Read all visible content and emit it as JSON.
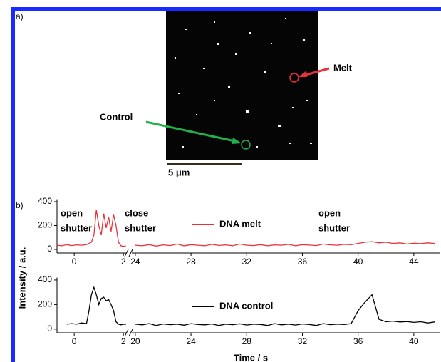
{
  "panel_a": {
    "label": "a)",
    "melt_label": "Melt",
    "control_label": "Control",
    "scale_bar": "5 μm"
  },
  "panel_b": {
    "label": "b)",
    "y_label": "Intensity / a.u.",
    "x_label": "Time / s"
  },
  "chart_data": [
    {
      "type": "line",
      "annotations": [
        [
          "open",
          "shutter"
        ],
        [
          "close",
          "shutter"
        ],
        [
          "open",
          "shutter"
        ]
      ],
      "ylim": [
        -30,
        420
      ],
      "yticks": [
        0,
        200,
        400
      ],
      "x_segments": [
        {
          "xlim": [
            -0.7,
            2.14
          ],
          "xticks": [
            0,
            2
          ]
        },
        {
          "xlim": [
            23.75,
            45.85
          ],
          "xticks": [
            24,
            28,
            32,
            36,
            40,
            44
          ]
        }
      ],
      "series": [
        {
          "name": "DNA melt",
          "color": "#e8323c",
          "x": [
            -0.7,
            -0.5,
            -0.3,
            -0.1,
            0.1,
            0.3,
            0.5,
            0.7,
            0.8,
            0.9,
            1.0,
            1.1,
            1.2,
            1.3,
            1.4,
            1.5,
            1.6,
            1.7,
            1.8,
            1.9,
            2.0,
            2.1,
            null,
            24,
            24.5,
            25,
            25.5,
            26,
            26.5,
            27,
            27.5,
            28,
            28.5,
            29,
            29.5,
            30,
            30.5,
            31,
            31.5,
            32,
            32.5,
            33,
            33.5,
            34,
            34.5,
            35,
            35.5,
            36,
            36.5,
            37,
            37.5,
            38,
            38.5,
            39,
            39.5,
            40,
            40.5,
            41,
            41.5,
            42,
            42.5,
            43,
            43.5,
            44,
            44.5,
            45,
            45.5
          ],
          "values": [
            35,
            30,
            40,
            32,
            38,
            35,
            40,
            60,
            120,
            330,
            200,
            120,
            300,
            180,
            270,
            150,
            290,
            200,
            60,
            30,
            25,
            30,
            null,
            35,
            30,
            40,
            28,
            38,
            32,
            45,
            30,
            40,
            35,
            30,
            42,
            33,
            38,
            30,
            45,
            35,
            32,
            40,
            30,
            38,
            35,
            42,
            30,
            40,
            36,
            32,
            45,
            38,
            35,
            42,
            40,
            50,
            60,
            65,
            55,
            60,
            50,
            55,
            45,
            52,
            48,
            55,
            50
          ]
        }
      ]
    },
    {
      "type": "line",
      "ylim": [
        -30,
        420
      ],
      "yticks": [
        0,
        200,
        400
      ],
      "x_segments": [
        {
          "xlim": [
            -0.7,
            2.14
          ],
          "xticks": [
            0,
            2
          ]
        },
        {
          "xlim": [
            19.75,
            41.85
          ],
          "xticks": [
            20,
            24,
            28,
            32,
            36,
            40
          ]
        }
      ],
      "series": [
        {
          "name": "DNA control",
          "color": "#000000",
          "x": [
            -0.3,
            -0.1,
            0.1,
            0.3,
            0.5,
            0.6,
            0.7,
            0.8,
            0.9,
            1.0,
            1.1,
            1.2,
            1.3,
            1.4,
            1.5,
            1.6,
            1.7,
            1.8,
            1.9,
            2.0,
            2.1,
            null,
            20,
            20.5,
            21,
            21.5,
            22,
            22.5,
            23,
            23.5,
            24,
            24.5,
            25,
            25.5,
            26,
            26.5,
            27,
            27.5,
            28,
            28.5,
            29,
            29.5,
            30,
            30.5,
            31,
            31.5,
            32,
            32.5,
            33,
            33.5,
            34,
            34.5,
            35,
            35.5,
            36,
            36.5,
            37,
            37.5,
            38,
            38.5,
            39,
            39.5,
            40,
            40.5,
            41,
            41.5
          ],
          "values": [
            40,
            45,
            40,
            50,
            45,
            150,
            280,
            340,
            280,
            200,
            250,
            260,
            230,
            240,
            200,
            150,
            60,
            40,
            35,
            40,
            38,
            null,
            40,
            35,
            45,
            30,
            42,
            36,
            40,
            32,
            45,
            38,
            35,
            42,
            30,
            40,
            36,
            44,
            33,
            40,
            38,
            30,
            45,
            35,
            40,
            33,
            42,
            38,
            30,
            45,
            36,
            40,
            38,
            45,
            150,
            220,
            280,
            80,
            60,
            65,
            58,
            62,
            55,
            60,
            50,
            58
          ]
        }
      ]
    }
  ]
}
